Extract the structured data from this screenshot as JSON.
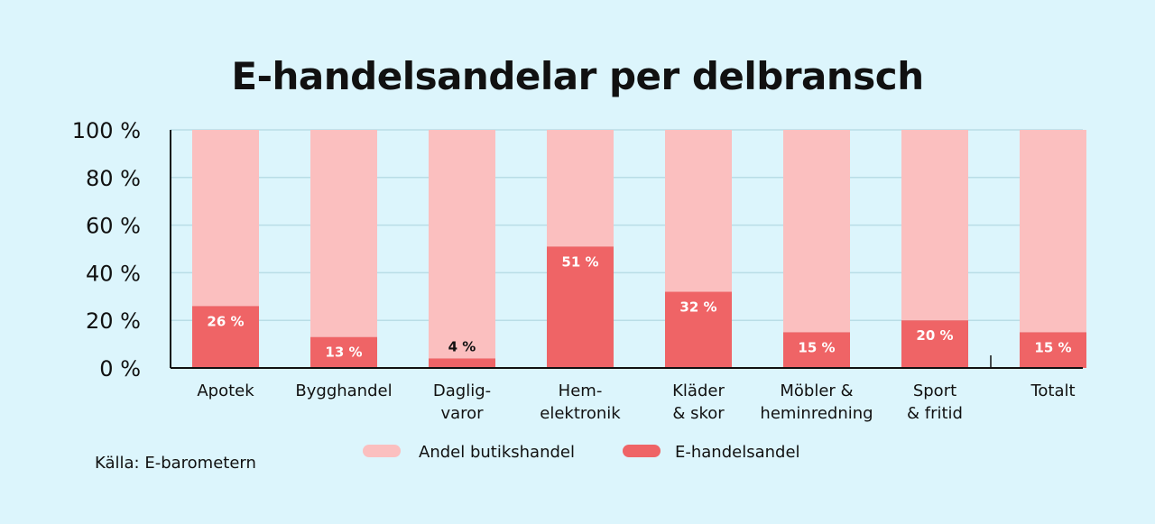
{
  "chart_data": {
    "type": "bar",
    "stacked": true,
    "title": "E-handelsandelar per delbransch",
    "categories": [
      [
        "Apotek"
      ],
      [
        "Bygghandel"
      ],
      [
        "Daglig-",
        "varor"
      ],
      [
        "Hem-",
        "elektronik"
      ],
      [
        "Kläder",
        "& skor"
      ],
      [
        "Möbler &",
        "heminredning"
      ],
      [
        "Sport",
        "& fritid"
      ],
      [
        "Totalt"
      ]
    ],
    "series": [
      {
        "name": "E-handelsandel",
        "color": "#ef6466",
        "values": [
          26,
          13,
          4,
          51,
          32,
          15,
          20,
          15
        ]
      },
      {
        "name": "Andel butikshandel",
        "color": "#fbbfbf",
        "values": [
          74,
          87,
          96,
          49,
          68,
          85,
          80,
          85
        ]
      }
    ],
    "data_labels": [
      "26 %",
      "13 %",
      "4 %",
      "51 %",
      "32 %",
      "15 %",
      "20 %",
      "15 %"
    ],
    "yticks": [
      "0 %",
      "20 %",
      "40 %",
      "60 %",
      "80 %",
      "100 %"
    ],
    "ylim": [
      0,
      100
    ],
    "grid": true,
    "legend": {
      "placement": "bottom",
      "entries": [
        "Andel butikshandel",
        "E-handelsandel"
      ]
    },
    "source": "Källa: E-barometern"
  }
}
